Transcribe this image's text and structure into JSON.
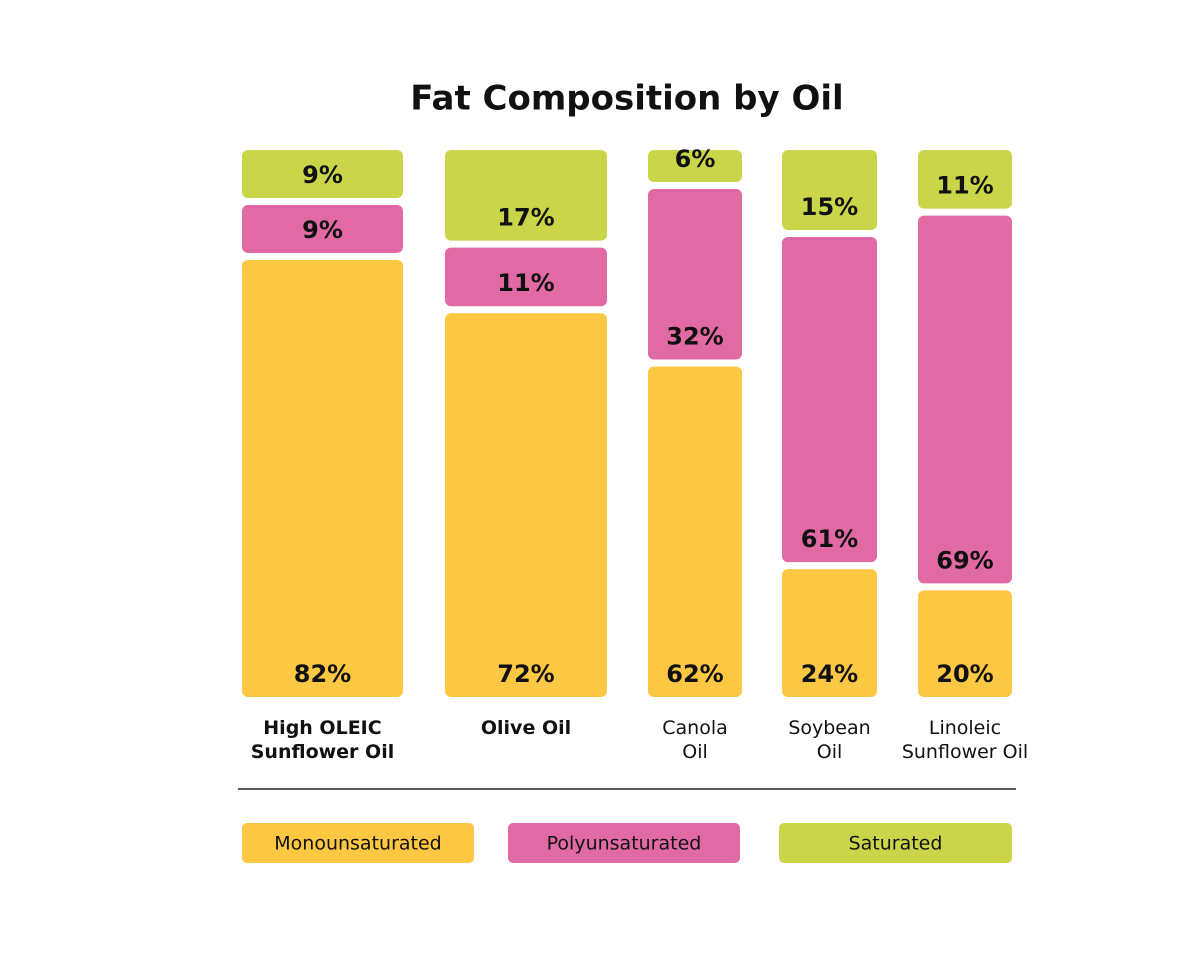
{
  "chart_data": {
    "type": "stacked-bar",
    "title": "Fat Composition by Oil",
    "categories": [
      "High OLEIC\nSunflower Oil",
      "Olive Oil",
      "Canola\nOil",
      "Soybean\nOil",
      "Linoleic\nSunflower Oil"
    ],
    "series": [
      {
        "name": "Monounsaturated",
        "color": "#fcc844",
        "values": [
          82,
          72,
          62,
          24,
          20
        ],
        "value_labels": [
          "82%",
          "72%",
          "62%",
          "24%",
          "20%"
        ]
      },
      {
        "name": "Polyunsaturated",
        "color": "#e16aa5",
        "values": [
          9,
          11,
          32,
          61,
          69
        ],
        "value_labels": [
          "9%",
          "11%",
          "32%",
          "61%",
          "69%"
        ]
      },
      {
        "name": "Saturated",
        "color": "#cbd54a",
        "values": [
          9,
          17,
          6,
          15,
          11
        ],
        "value_labels": [
          "9%",
          "17%",
          "6%",
          "15%",
          "11%"
        ]
      }
    ]
  }
}
